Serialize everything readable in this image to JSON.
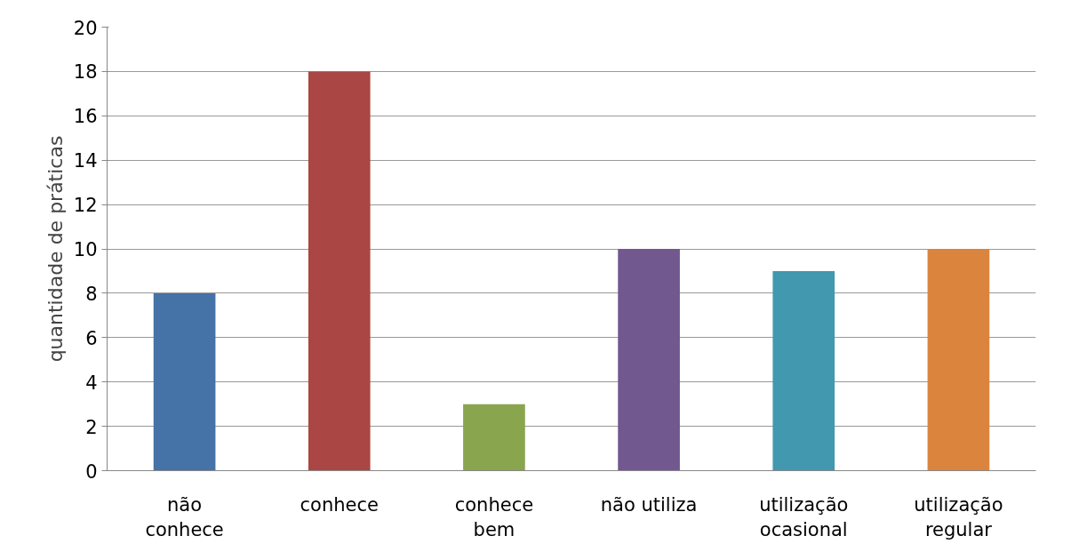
{
  "chart_data": {
    "type": "bar",
    "ylabel": "quantidade de práticas",
    "categories": [
      "não\nconhece",
      "conhece",
      "conhece\nbem",
      "não utiliza",
      "utilização\nocasional",
      "utilização\nregular"
    ],
    "values": [
      8,
      18,
      3,
      10,
      9,
      10
    ],
    "colors": [
      "#4572a7",
      "#aa4643",
      "#89a54e",
      "#71588f",
      "#4198af",
      "#db843d"
    ],
    "ylim": [
      0,
      20
    ],
    "yticks": [
      0,
      2,
      4,
      6,
      8,
      10,
      12,
      14,
      16,
      18,
      20
    ],
    "grid": "y"
  }
}
